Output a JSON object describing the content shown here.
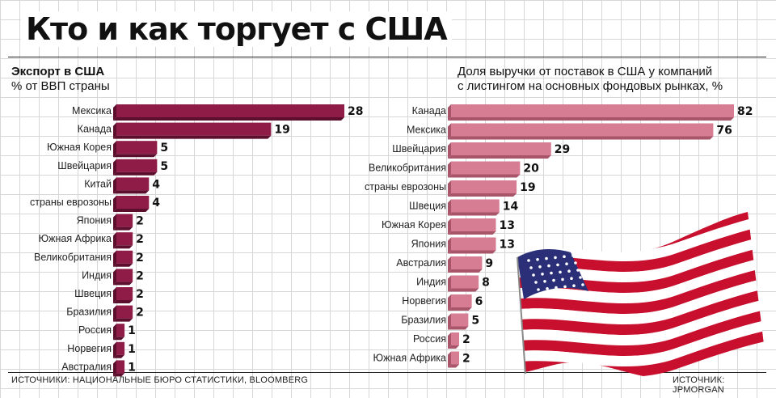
{
  "title": "Кто и как торгует с США",
  "colors": {
    "left_bar": "#8e1c47",
    "left_bar_dark": "#5c0f2c",
    "right_bar": "#d67d93",
    "right_bar_dark": "#a85469",
    "flag_red": "#c8102e",
    "flag_blue": "#2a2f78"
  },
  "chart_data": [
    {
      "type": "bar",
      "orientation": "horizontal",
      "title": "Экспорт в США",
      "subtitle": "% от ВВП страны",
      "categories": [
        "Мексика",
        "Канада",
        "Южная Корея",
        "Швейцария",
        "Китай",
        "страны еврозоны",
        "Япония",
        "Южная Африка",
        "Великобритания",
        "Индия",
        "Швеция",
        "Бразилия",
        "Россия",
        "Норвегия",
        "Австралия"
      ],
      "values": [
        28,
        19,
        5,
        5,
        4,
        4,
        2,
        2,
        2,
        2,
        2,
        2,
        1,
        1,
        1
      ],
      "xlim": [
        0,
        28
      ],
      "source": "ИСТОЧНИКИ: НАЦИОНАЛЬНЫЕ БЮРО СТАТИСТИКИ, BLOOMBERG"
    },
    {
      "type": "bar",
      "orientation": "horizontal",
      "title": "Доля выручки от поставок в США у компаний",
      "subtitle": "с листингом на основных фондовых рынках, %",
      "categories": [
        "Канада",
        "Мексика",
        "Швейцария",
        "Великобритания",
        "страны еврозоны",
        "Швеция",
        "Южная Корея",
        "Япония",
        "Австралия",
        "Индия",
        "Норвегия",
        "Бразилия",
        "Россия",
        "Южная Африка"
      ],
      "values": [
        82,
        76,
        29,
        20,
        19,
        14,
        13,
        13,
        9,
        8,
        6,
        5,
        2,
        2
      ],
      "xlim": [
        0,
        82
      ],
      "source": "ИСТОЧНИК: JPMORGAN"
    }
  ]
}
